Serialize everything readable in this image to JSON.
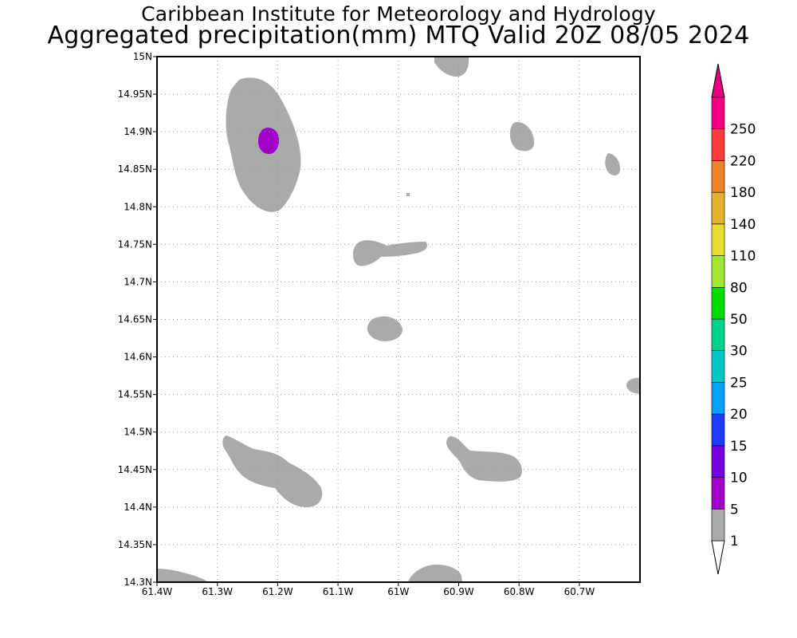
{
  "title_line1": "Caribbean Institute for Meteorology and Hydrology",
  "title_line2": "Aggregated precipitation(mm) MTQ Valid 20Z 08/05 2024",
  "map": {
    "lat_ticks": [
      "15N",
      "14.95N",
      "14.9N",
      "14.85N",
      "14.8N",
      "14.75N",
      "14.7N",
      "14.65N",
      "14.6N",
      "14.55N",
      "14.5N",
      "14.45N",
      "14.4N",
      "14.35N",
      "14.3N"
    ],
    "lon_ticks": [
      "61.4W",
      "61.3W",
      "61.2W",
      "61.1W",
      "61W",
      "60.9W",
      "60.8W",
      "60.7W"
    ],
    "grid": "dotted",
    "regions": [
      {
        "name": "northwest-storm",
        "bin": "1-5"
      },
      {
        "name": "northwest-storm-core",
        "bin": "5-10"
      },
      {
        "name": "north-edge-cell",
        "bin": "1-5"
      },
      {
        "name": "northeast-cell-1",
        "bin": "1-5"
      },
      {
        "name": "northeast-cell-2",
        "bin": "1-5"
      },
      {
        "name": "central-elongated-cell",
        "bin": "1-5"
      },
      {
        "name": "central-small-cell",
        "bin": "1-5"
      },
      {
        "name": "east-edge-cell",
        "bin": "1-5"
      },
      {
        "name": "southwest-elongated-cell",
        "bin": "1-5"
      },
      {
        "name": "south-central-cell",
        "bin": "1-5"
      },
      {
        "name": "southwest-corner-cell",
        "bin": "1-5"
      },
      {
        "name": "south-edge-cell",
        "bin": "1-5"
      }
    ]
  },
  "colorbar": {
    "labels": [
      "1",
      "5",
      "10",
      "15",
      "20",
      "25",
      "30",
      "50",
      "80",
      "110",
      "140",
      "180",
      "220",
      "250"
    ],
    "colors": [
      "#aaaaaa",
      "#a000c8",
      "#7800dc",
      "#1e3cff",
      "#00a0ff",
      "#00c8c8",
      "#00d28c",
      "#00dc00",
      "#a0e632",
      "#e6dc32",
      "#e6af2d",
      "#f08228",
      "#fa3c3c",
      "#f00082"
    ],
    "over_color": "#e6007e",
    "under_color": "#ffffff"
  }
}
